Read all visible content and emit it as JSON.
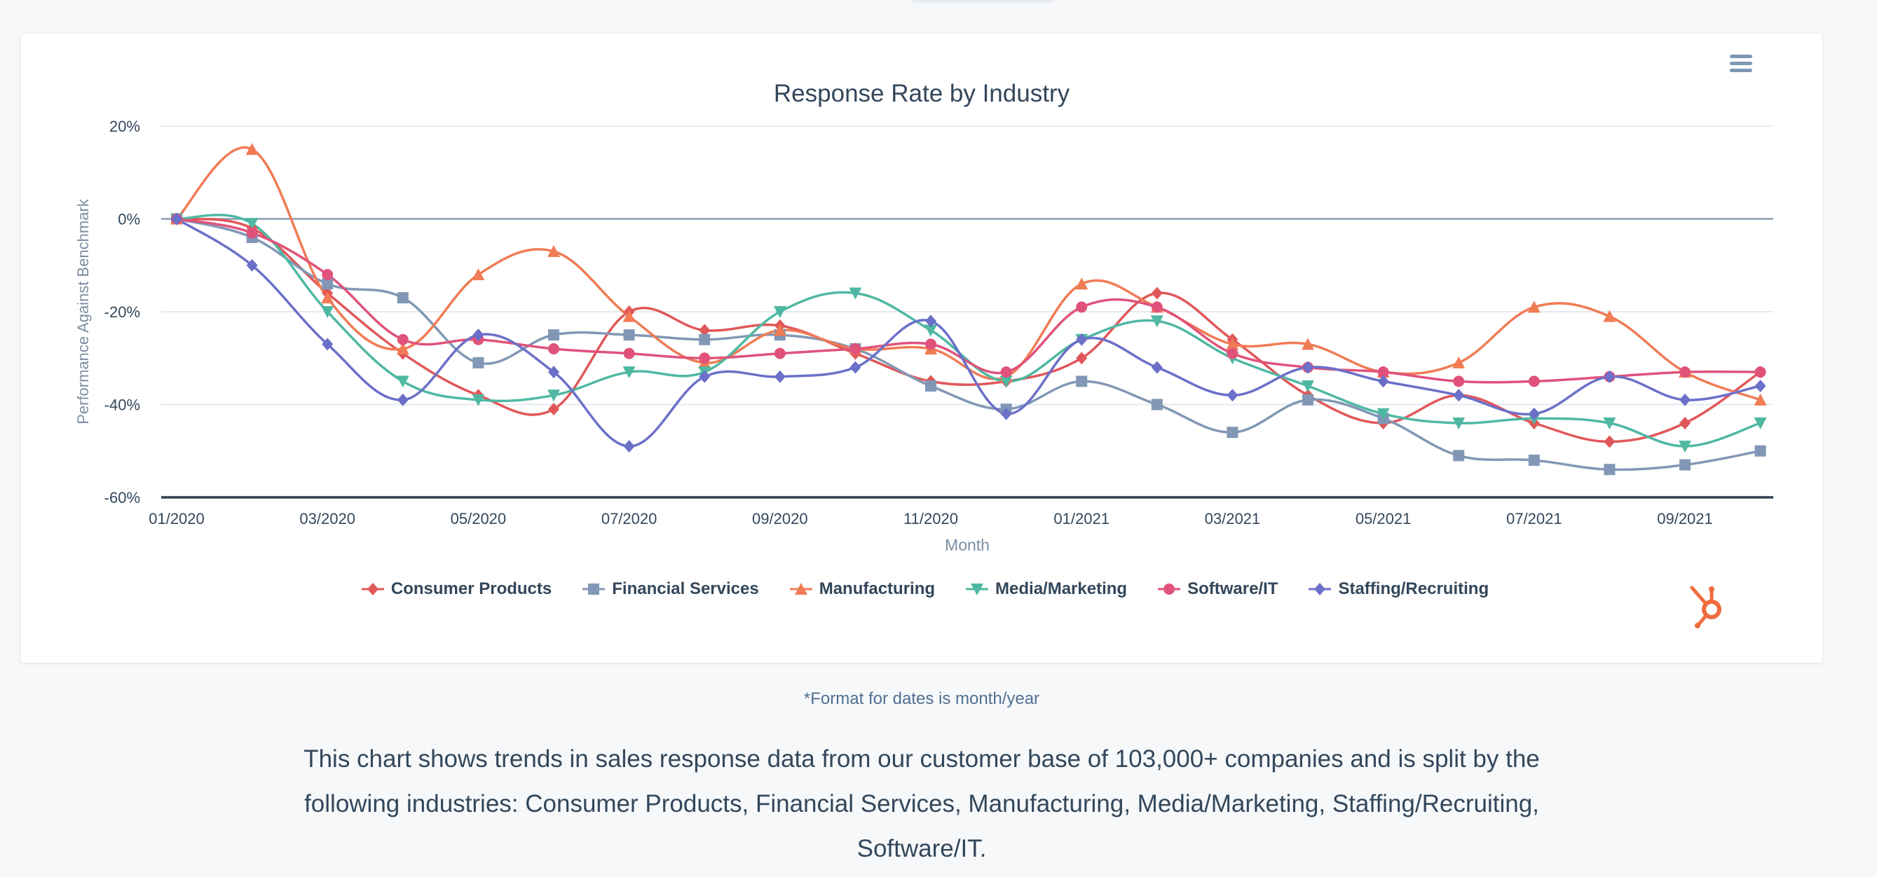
{
  "colors": {
    "Consumer Products": "#e15759",
    "Financial Services": "#8197b5",
    "Manufacturing": "#f07b55",
    "Media/Marketing": "#4fb8a2",
    "Software/IT": "#e0527a",
    "Staffing/Recruiting": "#6b70c9",
    "grid": "#e6e9ee",
    "zero_line": "#8a9cb3",
    "axis": "#2d3e50",
    "brand": "#f06b3e"
  },
  "markers": {
    "Consumer Products": "diamond-icon",
    "Financial Services": "square-icon",
    "Manufacturing": "triangle-up-icon",
    "Media/Marketing": "triangle-down-icon",
    "Software/IT": "circle-icon",
    "Staffing/Recruiting": "diamond-icon"
  },
  "chart_data": {
    "type": "line",
    "title": "Response Rate by Industry",
    "xlabel": "Month",
    "ylabel": "Performance Against Benchmark",
    "ylim": [
      -60,
      20
    ],
    "yticks": [
      "20%",
      "0%",
      "-20%",
      "-40%",
      "-60%"
    ],
    "grid": true,
    "legend_position": "bottom",
    "x": [
      "01/2020",
      "02/2020",
      "03/2020",
      "04/2020",
      "05/2020",
      "06/2020",
      "07/2020",
      "08/2020",
      "09/2020",
      "10/2020",
      "11/2020",
      "12/2020",
      "01/2021",
      "02/2021",
      "03/2021",
      "04/2021",
      "05/2021",
      "06/2021",
      "07/2021",
      "08/2021",
      "09/2021",
      "10/2021"
    ],
    "xtick_labels": [
      "01/2020",
      "03/2020",
      "05/2020",
      "07/2020",
      "09/2020",
      "11/2020",
      "01/2021",
      "03/2021",
      "05/2021",
      "07/2021",
      "09/2021"
    ],
    "series": [
      {
        "name": "Consumer Products",
        "values": [
          0,
          -2,
          -16,
          -29,
          -38,
          -41,
          -20,
          -24,
          -23,
          -29,
          -35,
          -35,
          -30,
          -16,
          -26,
          -38,
          -44,
          -38,
          -44,
          -48,
          -44,
          -33
        ]
      },
      {
        "name": "Financial Services",
        "values": [
          0,
          -4,
          -14,
          -17,
          -31,
          -25,
          -25,
          -26,
          -25,
          -28,
          -36,
          -41,
          -35,
          -40,
          -46,
          -39,
          -43,
          -51,
          -52,
          -54,
          -53,
          -50
        ]
      },
      {
        "name": "Manufacturing",
        "values": [
          0,
          15,
          -17,
          -28,
          -12,
          -7,
          -21,
          -31,
          -24,
          -28,
          -28,
          -34,
          -14,
          -19,
          -27,
          -27,
          -33,
          -31,
          -19,
          -21,
          -33,
          -39
        ]
      },
      {
        "name": "Media/Marketing",
        "values": [
          0,
          -1,
          -20,
          -35,
          -39,
          -38,
          -33,
          -33,
          -20,
          -16,
          -24,
          -35,
          -26,
          -22,
          -30,
          -36,
          -42,
          -44,
          -43,
          -44,
          -49,
          -44
        ]
      },
      {
        "name": "Software/IT",
        "values": [
          0,
          -3,
          -12,
          -26,
          -26,
          -28,
          -29,
          -30,
          -29,
          -28,
          -27,
          -33,
          -19,
          -19,
          -29,
          -32,
          -33,
          -35,
          -35,
          -34,
          -33,
          -33
        ]
      },
      {
        "name": "Staffing/Recruiting",
        "values": [
          0,
          -10,
          -27,
          -39,
          -25,
          -33,
          -49,
          -34,
          -34,
          -32,
          -22,
          -42,
          -26,
          -32,
          -38,
          -32,
          -35,
          -38,
          -42,
          -34,
          -39,
          -36
        ]
      }
    ]
  },
  "menu": {
    "label": "Chart context menu"
  },
  "footnote": "*Format for dates is month/year",
  "description": "This chart shows trends in sales response data from our customer base of 103,000+ companies and is split by the following industries: Consumer Products, Financial Services, Manufacturing, Media/Marketing, Staffing/Recruiting, Software/IT."
}
